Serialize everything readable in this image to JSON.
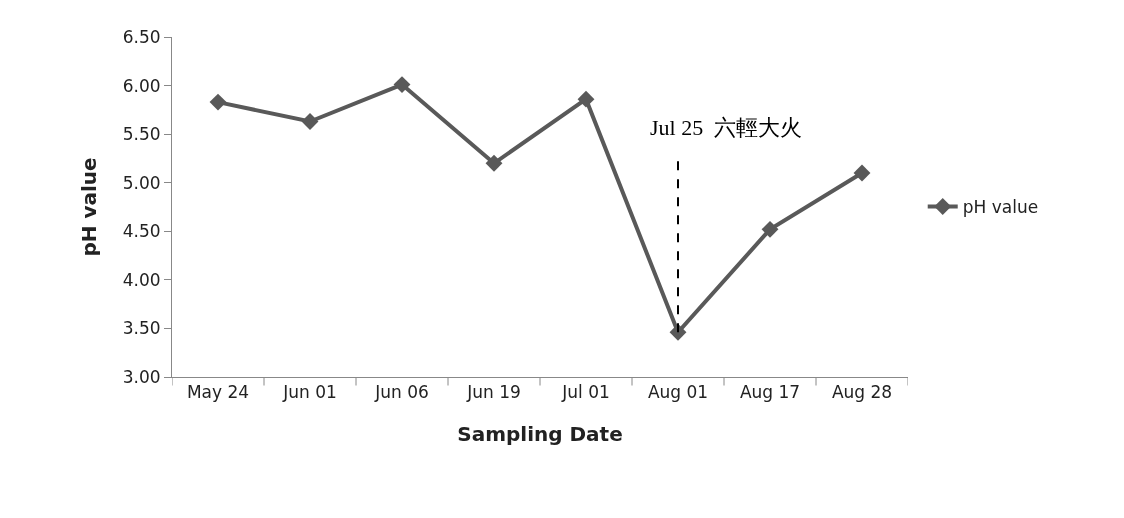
{
  "chart_data": {
    "type": "line",
    "xlabel": "Sampling Date",
    "ylabel": "pH value",
    "categories": [
      "May 24",
      "Jun 01",
      "Jun 06",
      "Jun 19",
      "Jul 01",
      "Aug 01",
      "Aug 17",
      "Aug 28"
    ],
    "series": [
      {
        "name": "pH value",
        "color": "#595959",
        "values": [
          5.83,
          5.63,
          6.01,
          5.2,
          5.86,
          3.46,
          4.52,
          5.1
        ]
      }
    ],
    "ylim": [
      3.0,
      6.5
    ],
    "yticks": [
      {
        "value": 3.0,
        "label": "3.00"
      },
      {
        "value": 3.5,
        "label": "3.50"
      },
      {
        "value": 4.0,
        "label": "4.00"
      },
      {
        "value": 4.5,
        "label": "4.50"
      },
      {
        "value": 5.0,
        "label": "5.00"
      },
      {
        "value": 5.5,
        "label": "5.50"
      },
      {
        "value": 6.0,
        "label": "6.00"
      },
      {
        "value": 6.5,
        "label": "6.50"
      }
    ],
    "ref_lines": [
      {
        "axis": "x",
        "value": "Aug 01",
        "label": "Jul 25  六輕大火",
        "line_style": "dashed",
        "color": "#000000"
      }
    ],
    "marker": "diamond",
    "line_style": "solid",
    "legend": "right"
  }
}
